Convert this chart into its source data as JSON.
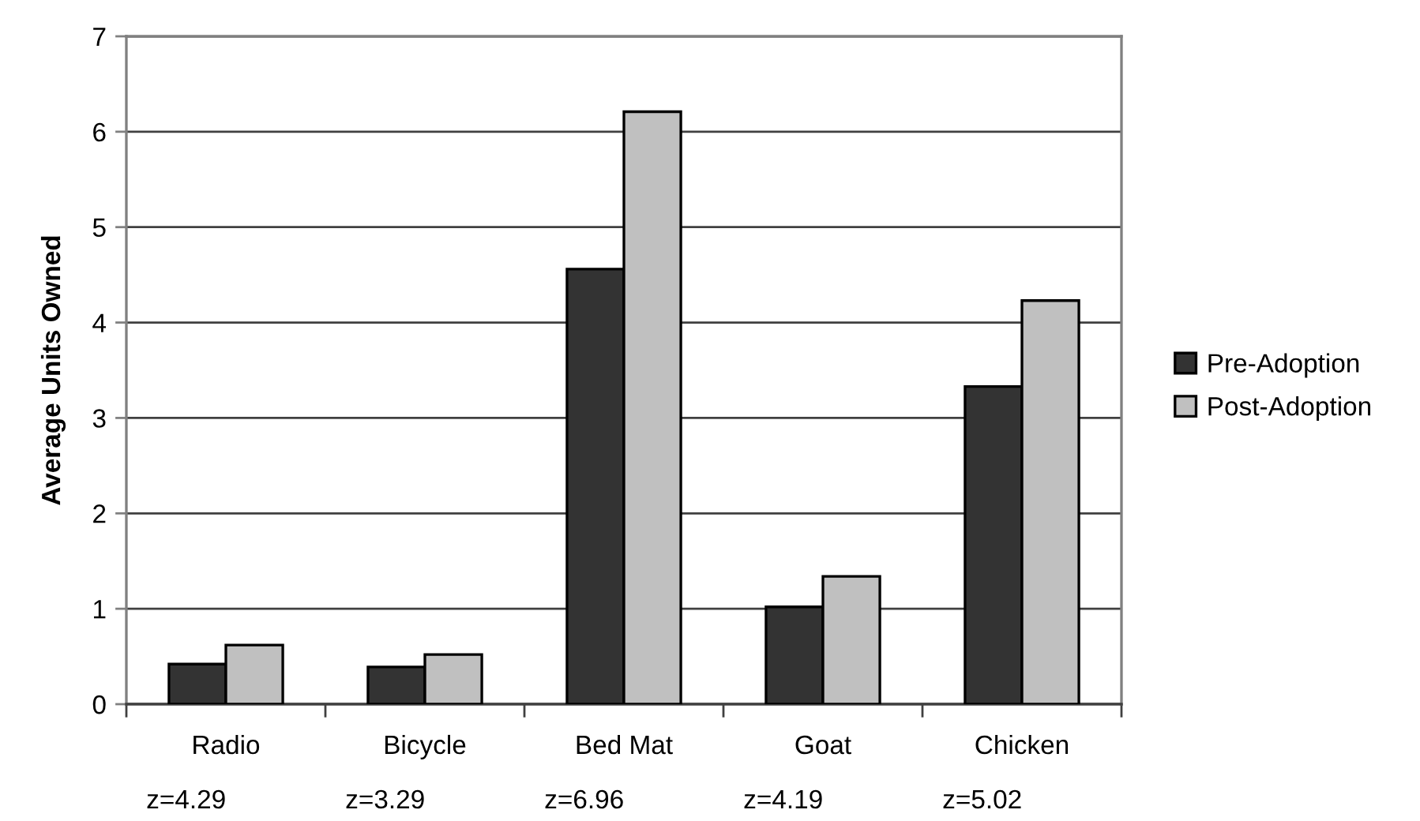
{
  "chart_data": {
    "type": "bar",
    "ylabel": "Average Units Owned",
    "categories": [
      "Radio",
      "Bicycle",
      "Bed Mat",
      "Goat",
      "Chicken"
    ],
    "series": [
      {
        "name": "Pre-Adoption",
        "color": "#333333",
        "values": [
          0.42,
          0.39,
          4.56,
          1.02,
          3.33
        ]
      },
      {
        "name": "Post-Adoption",
        "color": "#c0c0c0",
        "values": [
          0.62,
          0.52,
          6.21,
          1.34,
          4.23
        ]
      }
    ],
    "ylim": [
      0,
      7
    ],
    "yticks": [
      0,
      1,
      2,
      3,
      4,
      5,
      6,
      7
    ],
    "grid": "y",
    "legend": "right",
    "annotations": [
      "z=4.29",
      "z=3.29",
      "z=6.96",
      "z=4.19",
      "z=5.02"
    ]
  }
}
